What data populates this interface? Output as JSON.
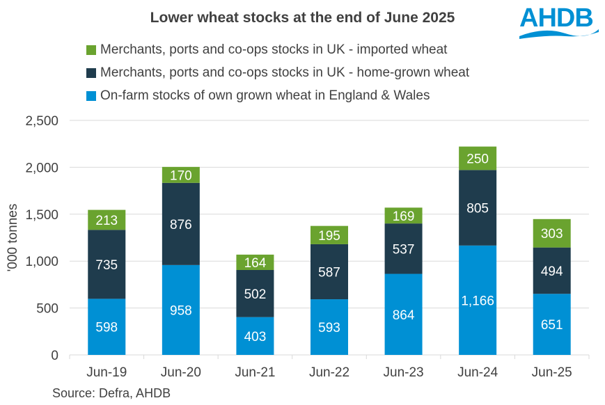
{
  "chart_data": {
    "type": "bar",
    "stacked": true,
    "title": "Lower wheat stocks at the end of June 2025",
    "ylabel": "'000 tonnes",
    "xlabel": "",
    "ylim": [
      0,
      2500
    ],
    "yticks": [
      0,
      500,
      1000,
      1500,
      2000,
      2500
    ],
    "ytick_labels": [
      "0",
      "500",
      "1,000",
      "1,500",
      "2,000",
      "2,500"
    ],
    "grid": true,
    "legend_position": "top",
    "categories": [
      "Jun-19",
      "Jun-20",
      "Jun-21",
      "Jun-22",
      "Jun-23",
      "Jun-24",
      "Jun-25"
    ],
    "series": [
      {
        "name": "On-farm stocks of own grown wheat in England & Wales",
        "color": "#0090d4",
        "values": [
          598,
          958,
          403,
          593,
          864,
          1166,
          651
        ],
        "labels": [
          "598",
          "958",
          "403",
          "593",
          "864",
          "1,166",
          "651"
        ]
      },
      {
        "name": "Merchants, ports and co-ops stocks in UK - home-grown wheat",
        "color": "#1f3c4d",
        "values": [
          735,
          876,
          502,
          587,
          537,
          805,
          494
        ],
        "labels": [
          "735",
          "876",
          "502",
          "587",
          "537",
          "805",
          "494"
        ]
      },
      {
        "name": "Merchants, ports and co-ops stocks in UK - imported wheat",
        "color": "#6aa32f",
        "values": [
          213,
          170,
          164,
          195,
          169,
          250,
          303
        ],
        "labels": [
          "213",
          "170",
          "164",
          "195",
          "169",
          "250",
          "303"
        ]
      }
    ]
  },
  "source": "Source: Defra, AHDB",
  "logo": {
    "text": "AHDB",
    "color": "#0090d4"
  }
}
